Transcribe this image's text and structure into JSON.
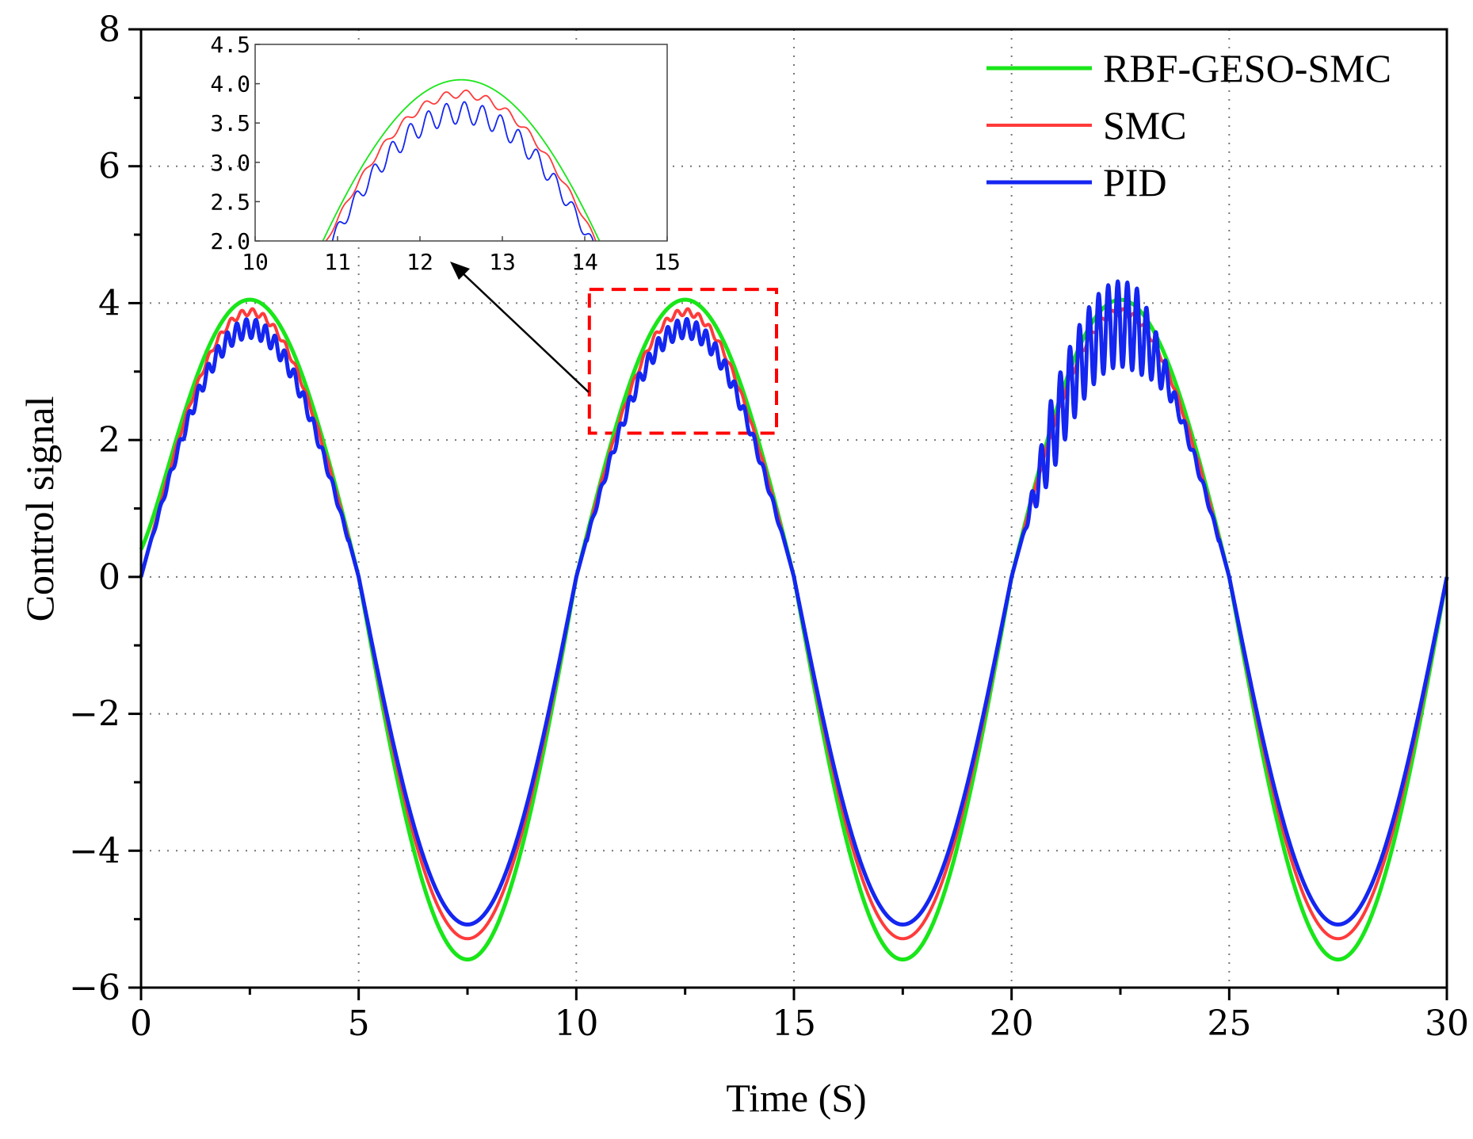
{
  "chart_data": {
    "type": "line",
    "title": "",
    "xlabel": "Time (S)",
    "ylabel": "Control signal",
    "xlim": [
      0,
      30
    ],
    "ylim": [
      -6,
      8
    ],
    "grid": true,
    "legend_position": "top-right",
    "x_ticks": [
      "0",
      "5",
      "10",
      "15",
      "20",
      "25",
      "30"
    ],
    "y_ticks": [
      "−6",
      "−4",
      "−2",
      "0",
      "2",
      "4",
      "6",
      "8"
    ],
    "series": [
      {
        "name": "RBF-GESO-SMC",
        "color": "#19e619",
        "description": "smooth periodic signal, period 10 s, peak ~4.05 at t=2.5, trough ~-5.6 at t=7.5"
      },
      {
        "name": "SMC",
        "color": "#ff3b3b",
        "description": "peak ~3.85, trough ~-5.3, small chattering near peaks"
      },
      {
        "name": "PID",
        "color": "#1426f0",
        "description": "peak ~3.75, trough ~-5.1, strong oscillation near peaks; large burst up to ~4.4 around t=21-23"
      }
    ],
    "zoom_box": {
      "x_range": [
        10.3,
        14.6
      ],
      "y_range": [
        2.1,
        4.2
      ],
      "color": "#ff0000"
    },
    "inset": {
      "xlim": [
        10,
        15
      ],
      "ylim": [
        2.0,
        4.5
      ],
      "x_ticks": [
        "10",
        "11",
        "12",
        "13",
        "14",
        "15"
      ],
      "y_ticks": [
        "2.0",
        "2.5",
        "3.0",
        "3.5",
        "4.0",
        "4.5"
      ]
    }
  }
}
